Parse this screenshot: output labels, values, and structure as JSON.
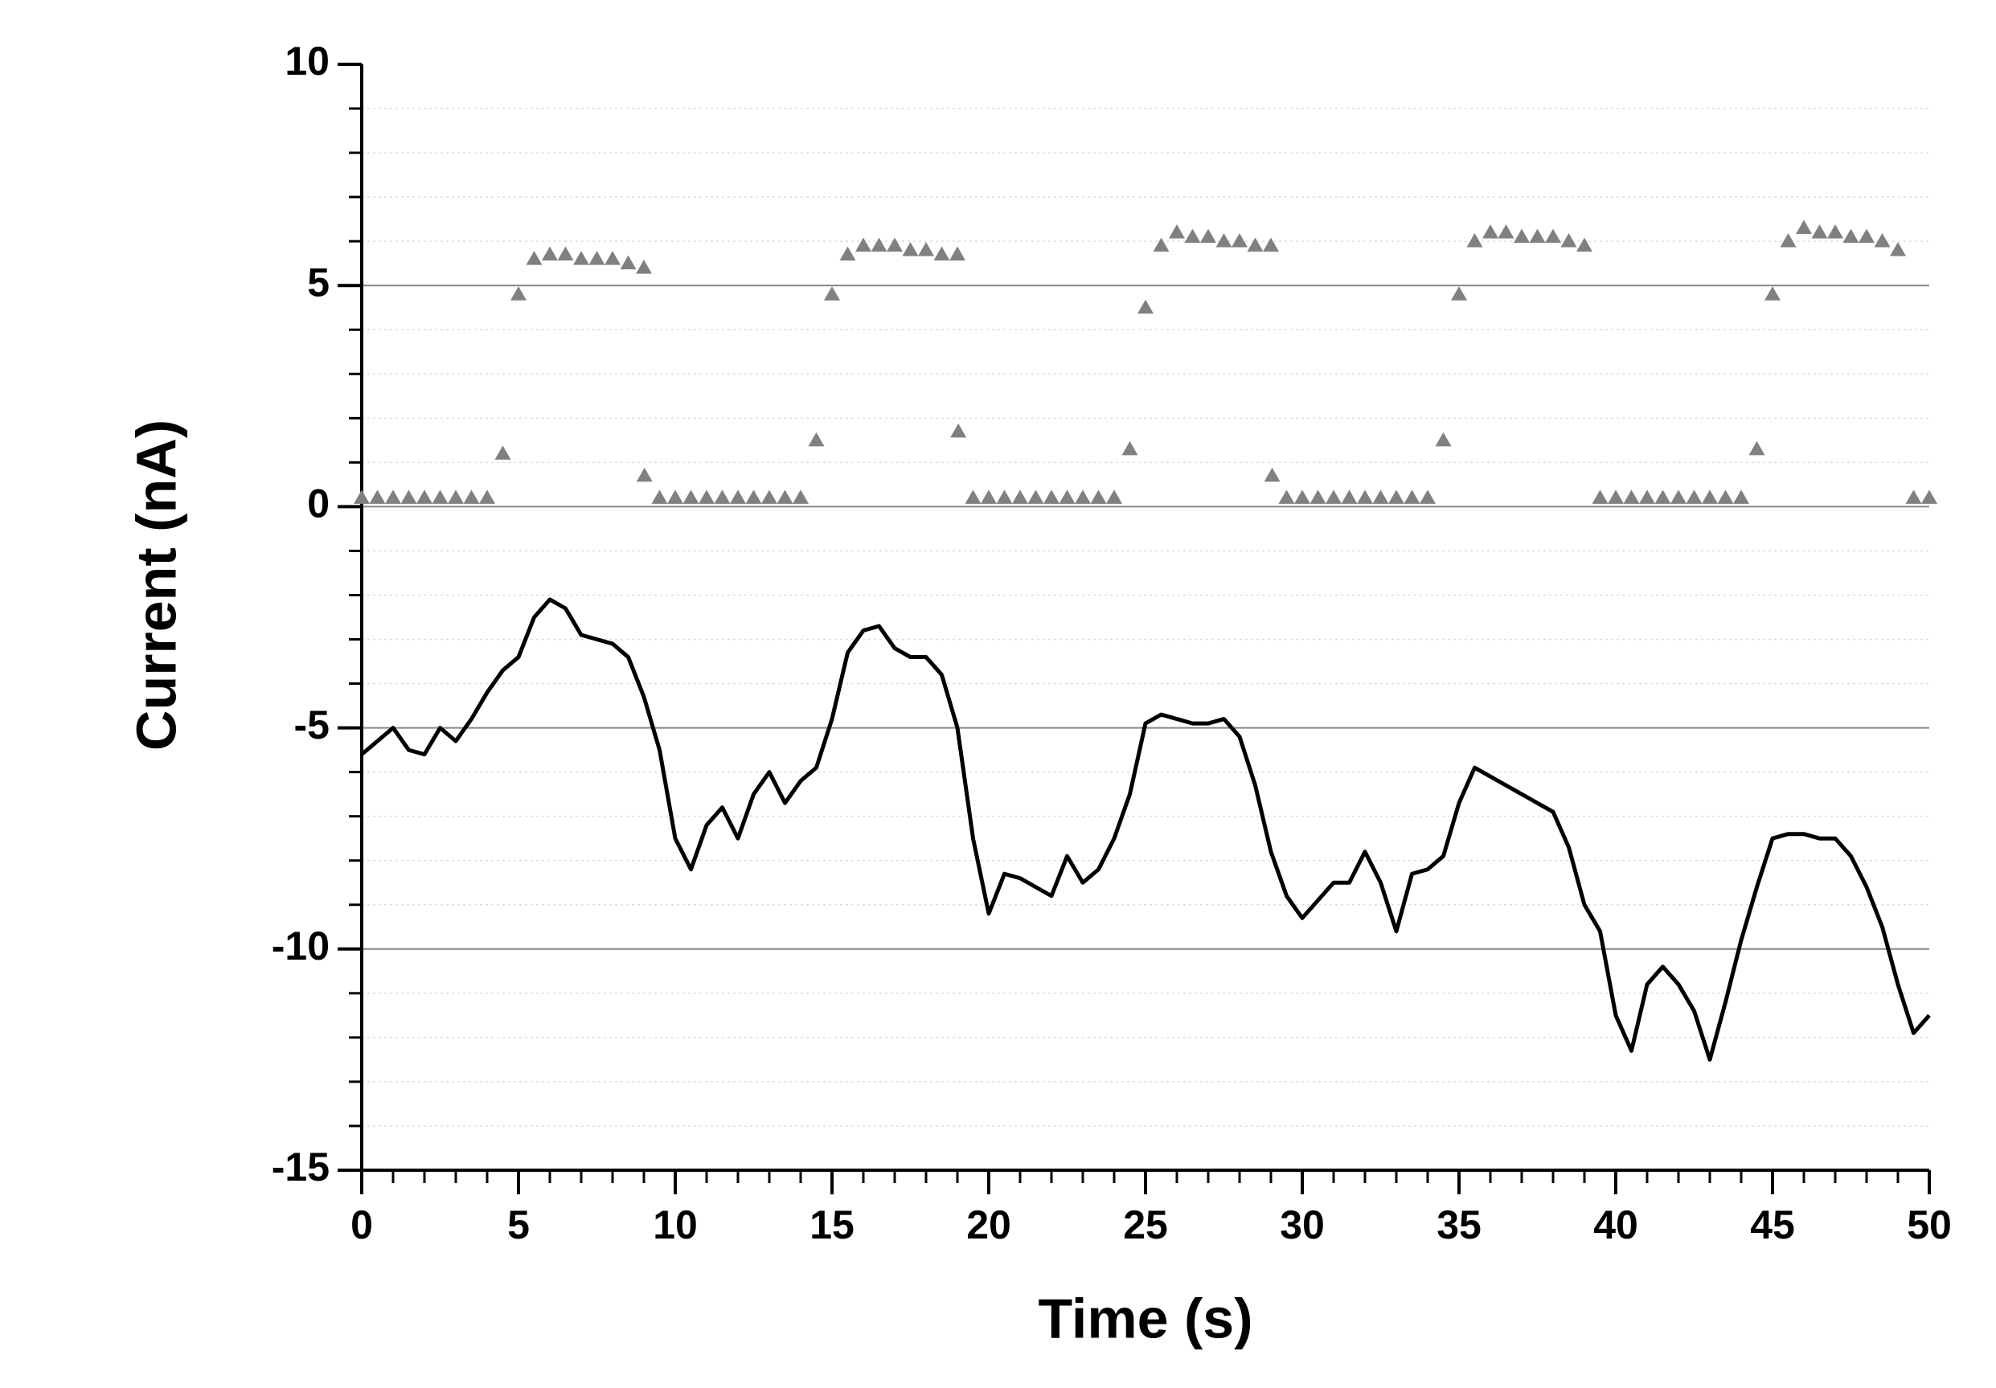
{
  "chart_data": {
    "type": "line",
    "xlabel": "Time (s)",
    "ylabel": "Current (nA)",
    "xlim": [
      0,
      50
    ],
    "xticks": [
      0,
      5,
      10,
      15,
      20,
      25,
      30,
      35,
      40,
      45,
      50
    ],
    "ylim": [
      -15,
      10
    ],
    "yticks": [
      -15,
      -10,
      -5,
      0,
      5,
      10
    ],
    "minor_ticks": 4,
    "grid": true,
    "series": [
      {
        "type": "scatter",
        "marker": "triangle",
        "color": "#808080",
        "x": [
          0,
          0.5,
          1,
          1.5,
          2,
          2.5,
          3,
          3.5,
          4,
          4.5,
          5,
          5.5,
          6,
          6.5,
          7,
          7.5,
          8,
          8.5,
          9,
          9.5,
          10,
          10.5,
          11,
          11.5,
          12,
          12.5,
          13,
          13.5,
          14,
          14.5,
          15,
          15.5,
          16,
          16.5,
          17,
          17.5,
          18,
          18.5,
          19,
          19.5,
          20,
          20.5,
          21,
          21.5,
          22,
          22.5,
          23,
          23.5,
          24,
          24.5,
          25,
          25.5,
          26,
          26.5,
          27,
          27.5,
          28,
          28.5,
          29,
          29.5,
          30,
          30.5,
          31,
          31.5,
          32,
          32.5,
          33,
          33.5,
          34,
          34.5,
          35,
          35.5,
          36,
          36.5,
          37,
          37.5,
          38,
          38.5,
          39,
          39.5,
          40,
          40.5,
          41,
          41.5,
          42,
          42.5,
          43,
          43.5,
          44,
          44.5,
          45,
          45.5,
          46,
          46.5,
          47,
          47.5,
          48,
          48.5,
          49,
          49.5,
          50,
          9.02,
          19.03,
          29.04
        ],
        "values": [
          0.2,
          0.2,
          0.2,
          0.2,
          0.2,
          0.2,
          0.2,
          0.2,
          0.2,
          1.2,
          4.8,
          5.6,
          5.7,
          5.7,
          5.6,
          5.6,
          5.6,
          5.5,
          5.4,
          0.2,
          0.2,
          0.2,
          0.2,
          0.2,
          0.2,
          0.2,
          0.2,
          0.2,
          0.2,
          1.5,
          4.8,
          5.7,
          5.9,
          5.9,
          5.9,
          5.8,
          5.8,
          5.7,
          5.7,
          0.2,
          0.2,
          0.2,
          0.2,
          0.2,
          0.2,
          0.2,
          0.2,
          0.2,
          0.2,
          1.3,
          4.5,
          5.9,
          6.2,
          6.1,
          6.1,
          6.0,
          6.0,
          5.9,
          5.9,
          0.2,
          0.2,
          0.2,
          0.2,
          0.2,
          0.2,
          0.2,
          0.2,
          0.2,
          0.2,
          1.5,
          4.8,
          6.0,
          6.2,
          6.2,
          6.1,
          6.1,
          6.1,
          6.0,
          5.9,
          0.2,
          0.2,
          0.2,
          0.2,
          0.2,
          0.2,
          0.2,
          0.2,
          0.2,
          0.2,
          1.3,
          4.8,
          6.0,
          6.3,
          6.2,
          6.2,
          6.1,
          6.1,
          6.0,
          5.8,
          0.2,
          0.2,
          0.7,
          1.7,
          0.7
        ]
      },
      {
        "type": "line",
        "color": "#000000",
        "x": [
          0,
          0.5,
          1,
          1.5,
          2,
          2.5,
          3,
          3.5,
          4,
          4.5,
          5,
          5.5,
          6,
          6.5,
          7,
          7.5,
          8,
          8.5,
          9,
          9.5,
          10,
          10.5,
          11,
          11.5,
          12,
          12.5,
          13,
          13.5,
          14,
          14.5,
          15,
          15.5,
          16,
          16.5,
          17,
          17.5,
          18,
          18.5,
          19,
          19.5,
          20,
          20.5,
          21,
          21.5,
          22,
          22.5,
          23,
          23.5,
          24,
          24.5,
          25,
          25.5,
          26,
          26.5,
          27,
          27.5,
          28,
          28.5,
          29,
          29.5,
          30,
          30.5,
          31,
          31.5,
          32,
          32.5,
          33,
          33.5,
          34,
          34.5,
          35,
          35.5,
          36,
          36.5,
          37,
          37.5,
          38,
          38.5,
          39,
          39.5,
          40,
          40.5,
          41,
          41.5,
          42,
          42.5,
          43,
          43.5,
          44,
          44.5,
          45,
          45.5,
          46,
          46.5,
          47,
          47.5,
          48,
          48.5,
          49,
          49.5,
          50
        ],
        "values": [
          -5.6,
          -5.3,
          -5.0,
          -5.5,
          -5.6,
          -5.0,
          -5.3,
          -4.8,
          -4.2,
          -3.7,
          -3.4,
          -2.5,
          -2.1,
          -2.3,
          -2.9,
          -3.0,
          -3.1,
          -3.4,
          -4.3,
          -5.5,
          -7.5,
          -8.2,
          -7.2,
          -6.8,
          -7.5,
          -6.5,
          -6.0,
          -6.7,
          -6.2,
          -5.9,
          -4.8,
          -3.3,
          -2.8,
          -2.7,
          -3.2,
          -3.4,
          -3.4,
          -3.8,
          -5.0,
          -7.5,
          -9.2,
          -8.3,
          -8.4,
          -8.6,
          -8.8,
          -7.9,
          -8.5,
          -8.2,
          -7.5,
          -6.5,
          -4.9,
          -4.7,
          -4.8,
          -4.9,
          -4.9,
          -4.8,
          -5.2,
          -6.3,
          -7.8,
          -8.8,
          -9.3,
          -8.9,
          -8.5,
          -8.5,
          -7.8,
          -8.5,
          -9.6,
          -8.3,
          -8.2,
          -7.9,
          -6.7,
          -5.9,
          -6.1,
          -6.3,
          -6.5,
          -6.7,
          -6.9,
          -7.7,
          -9.0,
          -9.6,
          -11.5,
          -12.3,
          -10.8,
          -10.4,
          -10.8,
          -11.4,
          -12.5,
          -11.2,
          -9.8,
          -8.6,
          -7.5,
          -7.4,
          -7.4,
          -7.5,
          -7.5,
          -7.9,
          -8.6,
          -9.5,
          -10.8,
          -11.9,
          -11.5
        ]
      }
    ]
  }
}
